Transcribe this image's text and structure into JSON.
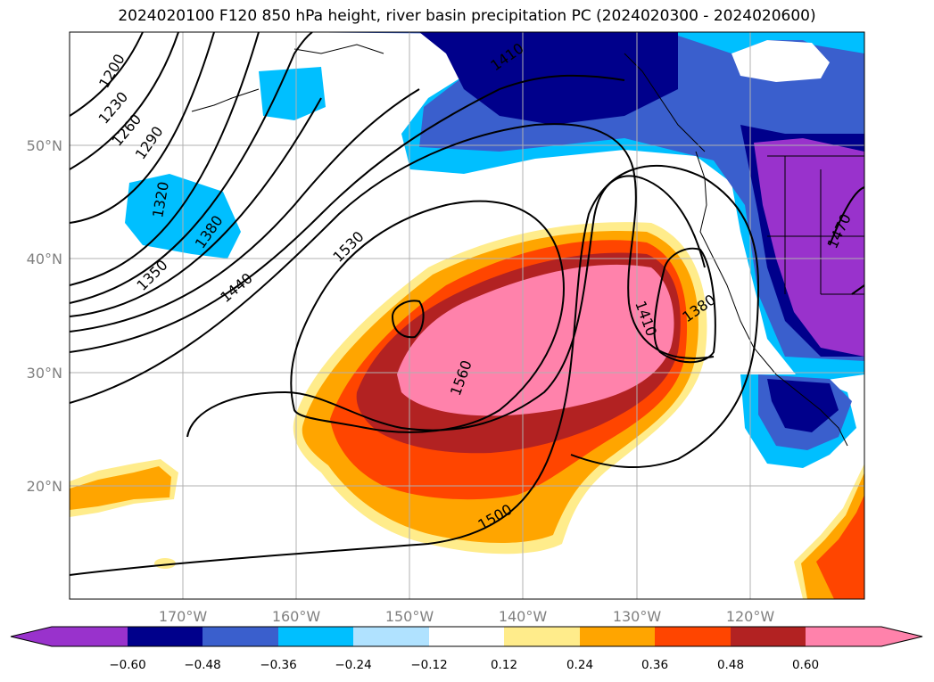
{
  "title": "2024020100 F120 850 hPa height, river basin precipitation PC (2024020300 - 2024020600)",
  "latitude_labels": [
    "50°N",
    "40°N",
    "30°N",
    "20°N"
  ],
  "longitude_labels": [
    "170°W",
    "160°W",
    "150°W",
    "140°W",
    "130°W",
    "120°W"
  ],
  "contour_labels": [
    "1200",
    "1230",
    "1260",
    "1290",
    "1320",
    "1350",
    "1380",
    "1410",
    "1440",
    "1470",
    "1500",
    "1530",
    "1560",
    "1380",
    "1410"
  ],
  "colorbar": {
    "ticks": [
      "−0.60",
      "−0.48",
      "−0.36",
      "−0.24",
      "−0.12",
      "0.12",
      "0.24",
      "0.36",
      "0.48",
      "0.60"
    ],
    "colors": [
      "#9932cc",
      "#00008b",
      "#3a5fcd",
      "#00bfff",
      "#b0e2ff",
      "#ffffff",
      "#ffec8b",
      "#ffa500",
      "#ff4500",
      "#b22222",
      "#ff82ab",
      "#ff82ab"
    ]
  },
  "colors": {
    "neg_purple": "#9932cc",
    "neg_navy": "#00008b",
    "neg_blue": "#3a5fcd",
    "neg_sky": "#00bfff",
    "neg_light": "#b0e2ff",
    "pos_yellow": "#ffec8b",
    "pos_orange": "#ffa500",
    "pos_red": "#ff4500",
    "pos_darkred": "#b22222",
    "pos_pink": "#ff82ab",
    "grid": "#b0b0b0"
  }
}
